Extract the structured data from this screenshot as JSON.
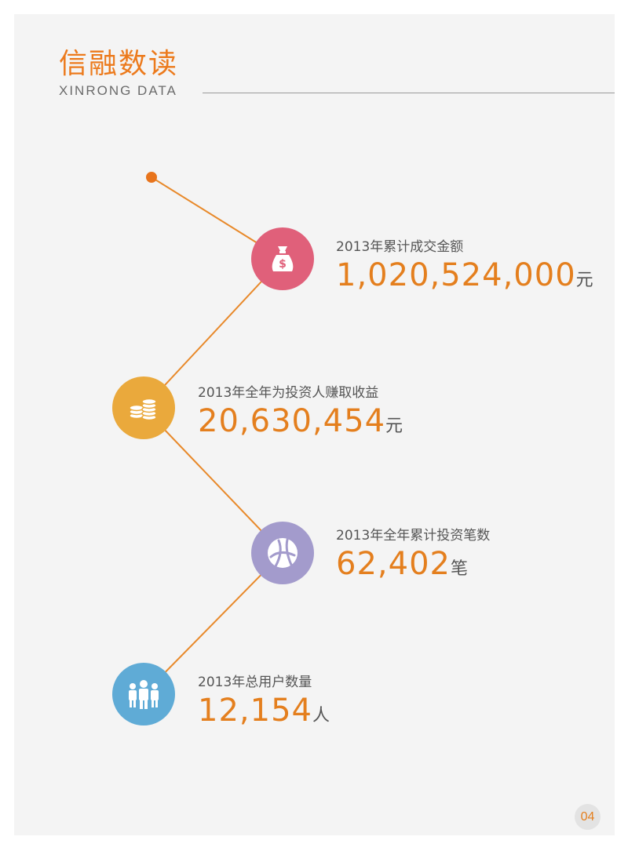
{
  "header": {
    "title": "信融数读",
    "subtitle": "XINRONG DATA"
  },
  "colors": {
    "accent": "#ec7a1c",
    "line": "#e8892a",
    "money_bag": "#e0607a",
    "coins": "#eaa93c",
    "network": "#a39bcc",
    "users": "#5fabd6"
  },
  "stats": [
    {
      "label": "2013年累计成交金额",
      "value": "1,020,524,000",
      "unit": "元",
      "icon": "money-bag-icon"
    },
    {
      "label": "2013年全年为投资人赚取收益",
      "value": "20,630,454",
      "unit": "元",
      "icon": "coins-icon"
    },
    {
      "label": "2013年全年累计投资笔数",
      "value": "62,402",
      "unit": "笔",
      "icon": "network-globe-icon"
    },
    {
      "label": "2013年总用户数量",
      "value": "12,154",
      "unit": "人",
      "icon": "users-icon"
    }
  ],
  "page_number": "04"
}
